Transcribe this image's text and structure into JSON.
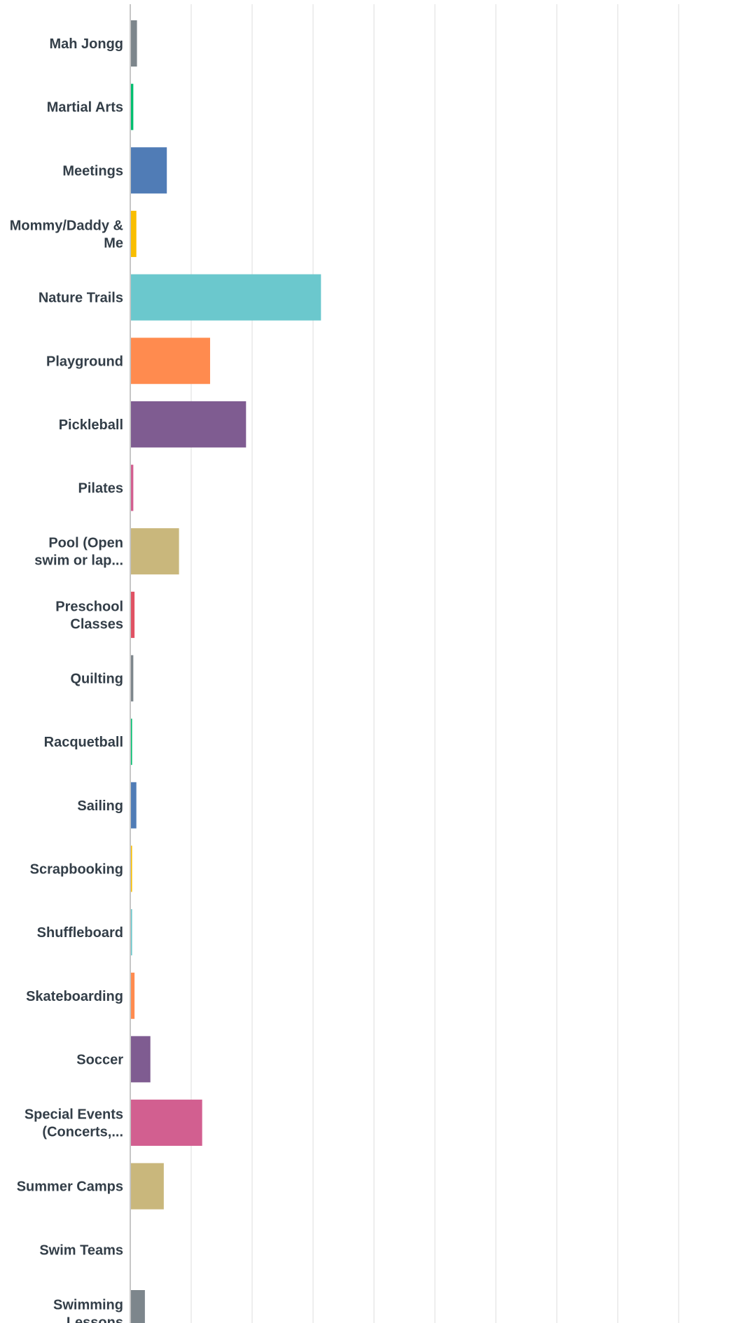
{
  "chart_data": {
    "type": "bar",
    "orientation": "horizontal",
    "grid": true,
    "xlim": [
      0,
      100
    ],
    "x_tick_step": 10,
    "tick_labels_visible": false,
    "categories": [
      "Mah Jongg",
      "Martial Arts",
      "Meetings",
      "Mommy/Daddy & Me",
      "Nature Trails",
      "Playground",
      "Pickleball",
      "Pilates",
      "Pool (Open swim or lap...",
      "Preschool Classes",
      "Quilting",
      "Racquetball",
      "Sailing",
      "Scrapbooking",
      "Shuffleboard",
      "Skateboarding",
      "Soccer",
      "Special Events (Concerts,...",
      "Summer Camps",
      "Swim Teams",
      "Swimming Lessons"
    ],
    "label_lines": [
      [
        "Mah Jongg"
      ],
      [
        "Martial Arts"
      ],
      [
        "Meetings"
      ],
      [
        "Mommy/Daddy &",
        "Me"
      ],
      [
        "Nature Trails"
      ],
      [
        "Playground"
      ],
      [
        "Pickleball"
      ],
      [
        "Pilates"
      ],
      [
        "Pool (Open",
        "swim or lap..."
      ],
      [
        "Preschool",
        "Classes"
      ],
      [
        "Quilting"
      ],
      [
        "Racquetball"
      ],
      [
        "Sailing"
      ],
      [
        "Scrapbooking"
      ],
      [
        "Shuffleboard"
      ],
      [
        "Skateboarding"
      ],
      [
        "Soccer"
      ],
      [
        "Special Events",
        "(Concerts,..."
      ],
      [
        "Summer Camps"
      ],
      [
        "Swim Teams"
      ],
      [
        "Swimming",
        "Lessons"
      ]
    ],
    "values": [
      1.1,
      0.5,
      6.0,
      1.0,
      31.3,
      13.1,
      19.0,
      0.5,
      8.0,
      0.7,
      0.5,
      0.3,
      1.0,
      0.3,
      0.3,
      0.7,
      3.3,
      11.8,
      5.5,
      0,
      2.4
    ],
    "colors": [
      "#7d868c",
      "#00bf6f",
      "#507cb6",
      "#f9be00",
      "#6bc8cd",
      "#ff8b4f",
      "#7f5c91",
      "#d25f90",
      "#c9b77c",
      "#e05263",
      "#7d868c",
      "#00bf6f",
      "#507cb6",
      "#f9be00",
      "#6bc8cd",
      "#ff8b4f",
      "#7f5c91",
      "#d25f90",
      "#c9b77c",
      "#e05263",
      "#7d868c"
    ]
  }
}
